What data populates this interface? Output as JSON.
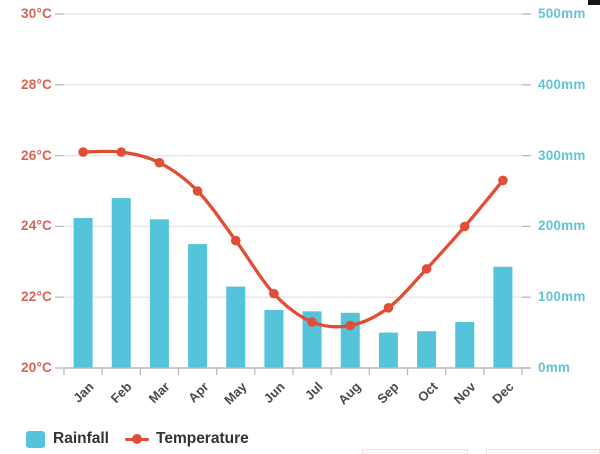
{
  "legend": {
    "rainfall_label": "Rainfall",
    "temperature_label": "Temperature"
  },
  "colors": {
    "background": "#ffffff",
    "grid": "#e5e5e5",
    "axis": "#b9b9b9",
    "temp_axis_label": "#db6153",
    "rain_axis_label": "#62c4d5",
    "month_label": "#4a4a4a",
    "legend_text": "#333333"
  },
  "chart_data": {
    "type": "bar",
    "subtype": "dual-axis bar + smooth line with point markers",
    "categories": [
      "Jan",
      "Feb",
      "Mar",
      "Apr",
      "May",
      "Jun",
      "Jul",
      "Aug",
      "Sep",
      "Oct",
      "Nov",
      "Dec"
    ],
    "series": [
      {
        "name": "Rainfall",
        "type": "bar",
        "axis": "right",
        "unit": "mm",
        "color": "#55c3d9",
        "values": [
          212,
          240,
          210,
          175,
          115,
          82,
          80,
          78,
          50,
          52,
          65,
          143
        ]
      },
      {
        "name": "Temperature",
        "type": "line",
        "axis": "left",
        "unit": "°C",
        "color": "#e14d35",
        "values": [
          26.1,
          26.1,
          25.8,
          25.0,
          23.6,
          22.1,
          21.3,
          21.2,
          21.7,
          22.8,
          24.0,
          25.3
        ]
      }
    ],
    "left_axis": {
      "range": [
        20,
        30
      ],
      "tick_values": [
        30,
        28,
        26,
        24,
        22,
        20
      ],
      "tick_labels": [
        "30°C",
        "28°C",
        "26°C",
        "24°C",
        "22°C",
        "20°C"
      ]
    },
    "right_axis": {
      "range": [
        0,
        500
      ],
      "tick_values": [
        500,
        400,
        300,
        200,
        100,
        0
      ],
      "tick_labels": [
        "500mm",
        "400mm",
        "300mm",
        "200mm",
        "100mm",
        "0mm"
      ]
    },
    "grid": true,
    "legend_position": "bottom-left",
    "x_label_rotation": -45
  }
}
